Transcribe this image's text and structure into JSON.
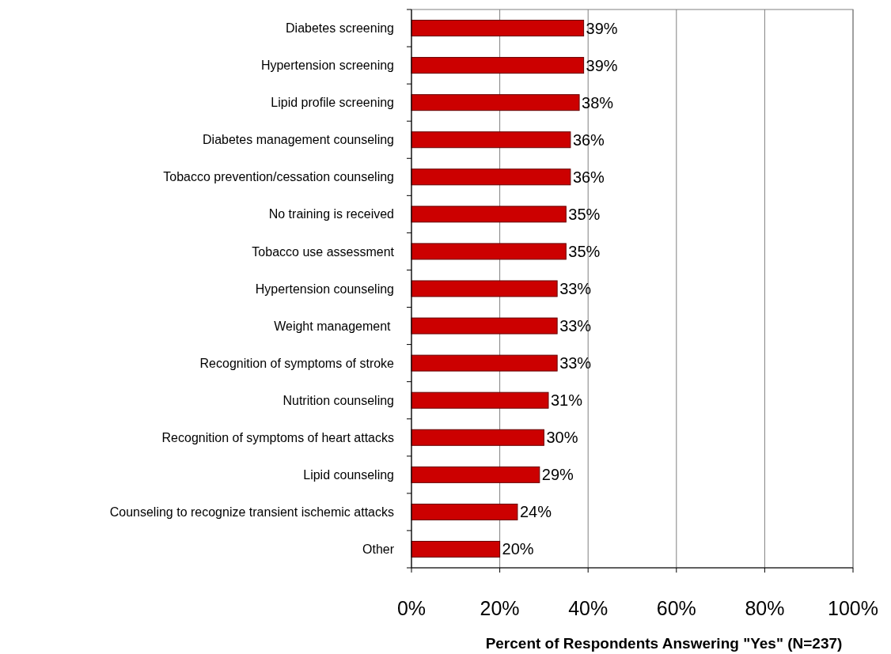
{
  "chart_data": {
    "type": "bar",
    "orientation": "horizontal",
    "xlabel": "Percent of Respondents Answering \"Yes\" (N=237)",
    "categories": [
      "Diabetes screening",
      "Hypertension screening",
      "Lipid profile screening",
      "Diabetes management counseling",
      "Tobacco prevention/cessation counseling",
      "No training is received",
      "Tobacco use assessment",
      "Hypertension counseling",
      "Weight management ",
      "Recognition of symptoms of stroke",
      "Nutrition counseling",
      "Recognition of symptoms of heart attacks",
      "Lipid counseling",
      "Counseling to recognize transient ischemic attacks",
      "Other"
    ],
    "values": [
      39,
      39,
      38,
      36,
      36,
      35,
      35,
      33,
      33,
      33,
      31,
      30,
      29,
      24,
      20
    ],
    "value_labels": [
      "39%",
      "39%",
      "38%",
      "36%",
      "36%",
      "35%",
      "35%",
      "33%",
      "33%",
      "33%",
      "31%",
      "30%",
      "29%",
      "24%",
      "20%"
    ],
    "color": "#cc0000",
    "xlim": [
      0,
      100
    ],
    "xticks": [
      {
        "value": 0,
        "label": "0%"
      },
      {
        "value": 20,
        "label": "20%"
      },
      {
        "value": 40,
        "label": "40%"
      },
      {
        "value": 60,
        "label": "60%"
      },
      {
        "value": 80,
        "label": "80%"
      },
      {
        "value": 100,
        "label": "100%"
      }
    ],
    "grid": "x"
  }
}
